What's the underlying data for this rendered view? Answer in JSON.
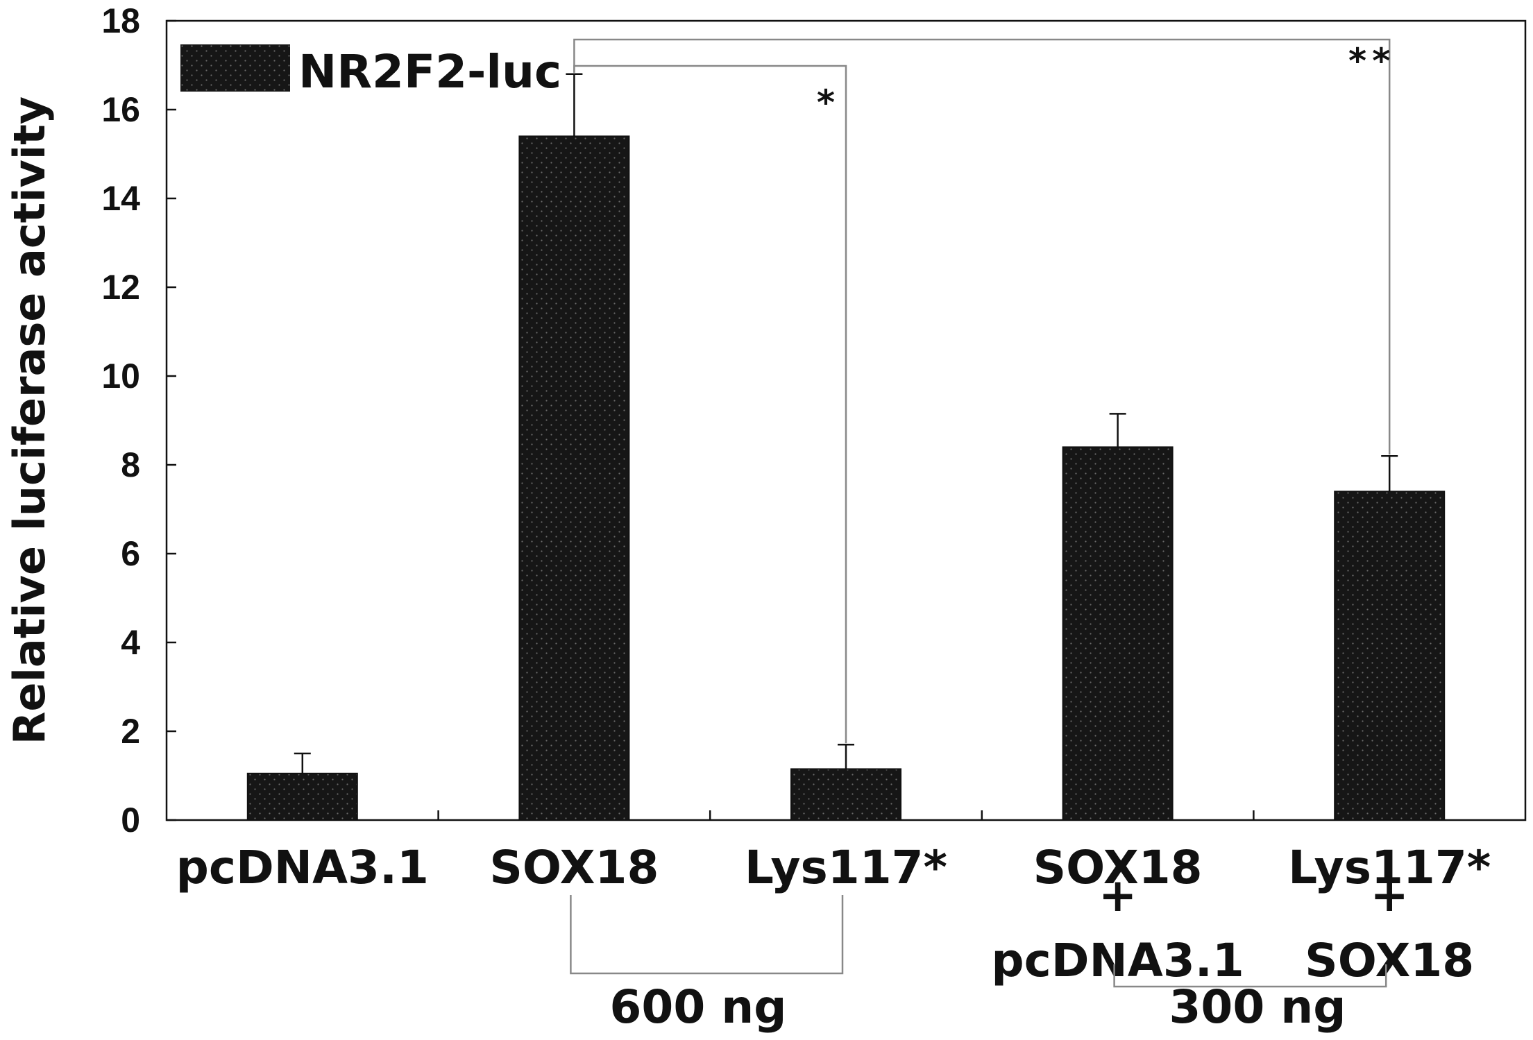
{
  "chart_data": {
    "type": "bar",
    "ylabel": "Relative luciferase activity",
    "ylim": [
      0,
      18
    ],
    "yticks": [
      "0",
      "2",
      "4",
      "6",
      "8",
      "10",
      "12",
      "14",
      "16",
      "18"
    ],
    "legend": {
      "position": "top-left",
      "entries": [
        "NR2F2-luc"
      ]
    },
    "categories": [
      {
        "lines": [
          "pcDNA3.1"
        ]
      },
      {
        "lines": [
          "SOX18"
        ]
      },
      {
        "lines": [
          "Lys117*"
        ]
      },
      {
        "lines": [
          "SOX18",
          "+",
          "pcDNA3.1"
        ]
      },
      {
        "lines": [
          "Lys117*",
          "+",
          "SOX18"
        ]
      }
    ],
    "series": [
      {
        "name": "NR2F2-luc",
        "color": "#1a1a1a",
        "values": [
          1.05,
          15.4,
          1.15,
          8.4,
          7.4
        ],
        "error": [
          0.45,
          1.4,
          0.55,
          0.75,
          0.8
        ]
      }
    ],
    "significance": [
      {
        "from": 1,
        "to": 2,
        "label": "*"
      },
      {
        "from": 1,
        "to": 4,
        "label": "**"
      }
    ],
    "groups": [
      {
        "from": 1,
        "to": 2,
        "label": "600 ng"
      },
      {
        "from": 3,
        "to": 4,
        "label": "300 ng"
      }
    ],
    "grid": false
  }
}
